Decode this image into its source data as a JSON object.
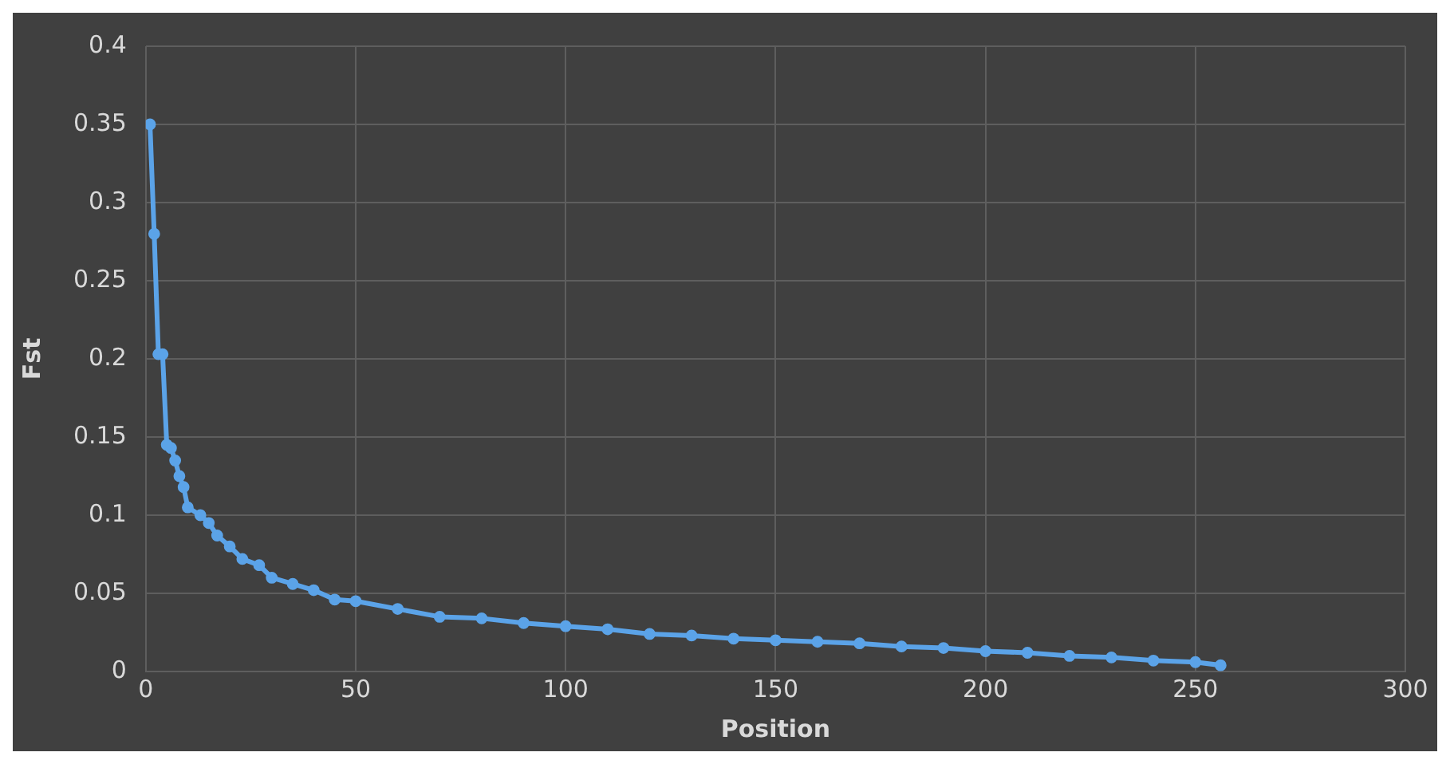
{
  "chart_data": {
    "type": "line",
    "xlabel": "Position",
    "ylabel": "Fst",
    "color": "#5ba3e8",
    "marker": "circle",
    "grid": true,
    "legend": false,
    "x": [
      1,
      2,
      3,
      4,
      5,
      6,
      7,
      8,
      9,
      10,
      13,
      15,
      17,
      20,
      23,
      27,
      30,
      35,
      40,
      45,
      50,
      60,
      70,
      80,
      90,
      100,
      110,
      120,
      130,
      140,
      150,
      160,
      170,
      180,
      190,
      200,
      210,
      220,
      230,
      240,
      250,
      256
    ],
    "values": [
      0.35,
      0.28,
      0.203,
      0.203,
      0.145,
      0.143,
      0.135,
      0.125,
      0.118,
      0.105,
      0.1,
      0.095,
      0.087,
      0.08,
      0.072,
      0.068,
      0.06,
      0.056,
      0.052,
      0.046,
      0.045,
      0.04,
      0.035,
      0.034,
      0.031,
      0.029,
      0.027,
      0.024,
      0.023,
      0.021,
      0.02,
      0.019,
      0.018,
      0.016,
      0.015,
      0.013,
      0.012,
      0.01,
      0.009,
      0.007,
      0.006,
      0.004
    ],
    "xlim": [
      0,
      300
    ],
    "xticks": [
      0,
      50,
      100,
      150,
      200,
      250,
      300
    ],
    "ylim": [
      0,
      0.4
    ],
    "yticks": [
      0,
      0.05,
      0.1,
      0.15,
      0.2,
      0.25,
      0.3,
      0.35,
      0.4
    ]
  }
}
